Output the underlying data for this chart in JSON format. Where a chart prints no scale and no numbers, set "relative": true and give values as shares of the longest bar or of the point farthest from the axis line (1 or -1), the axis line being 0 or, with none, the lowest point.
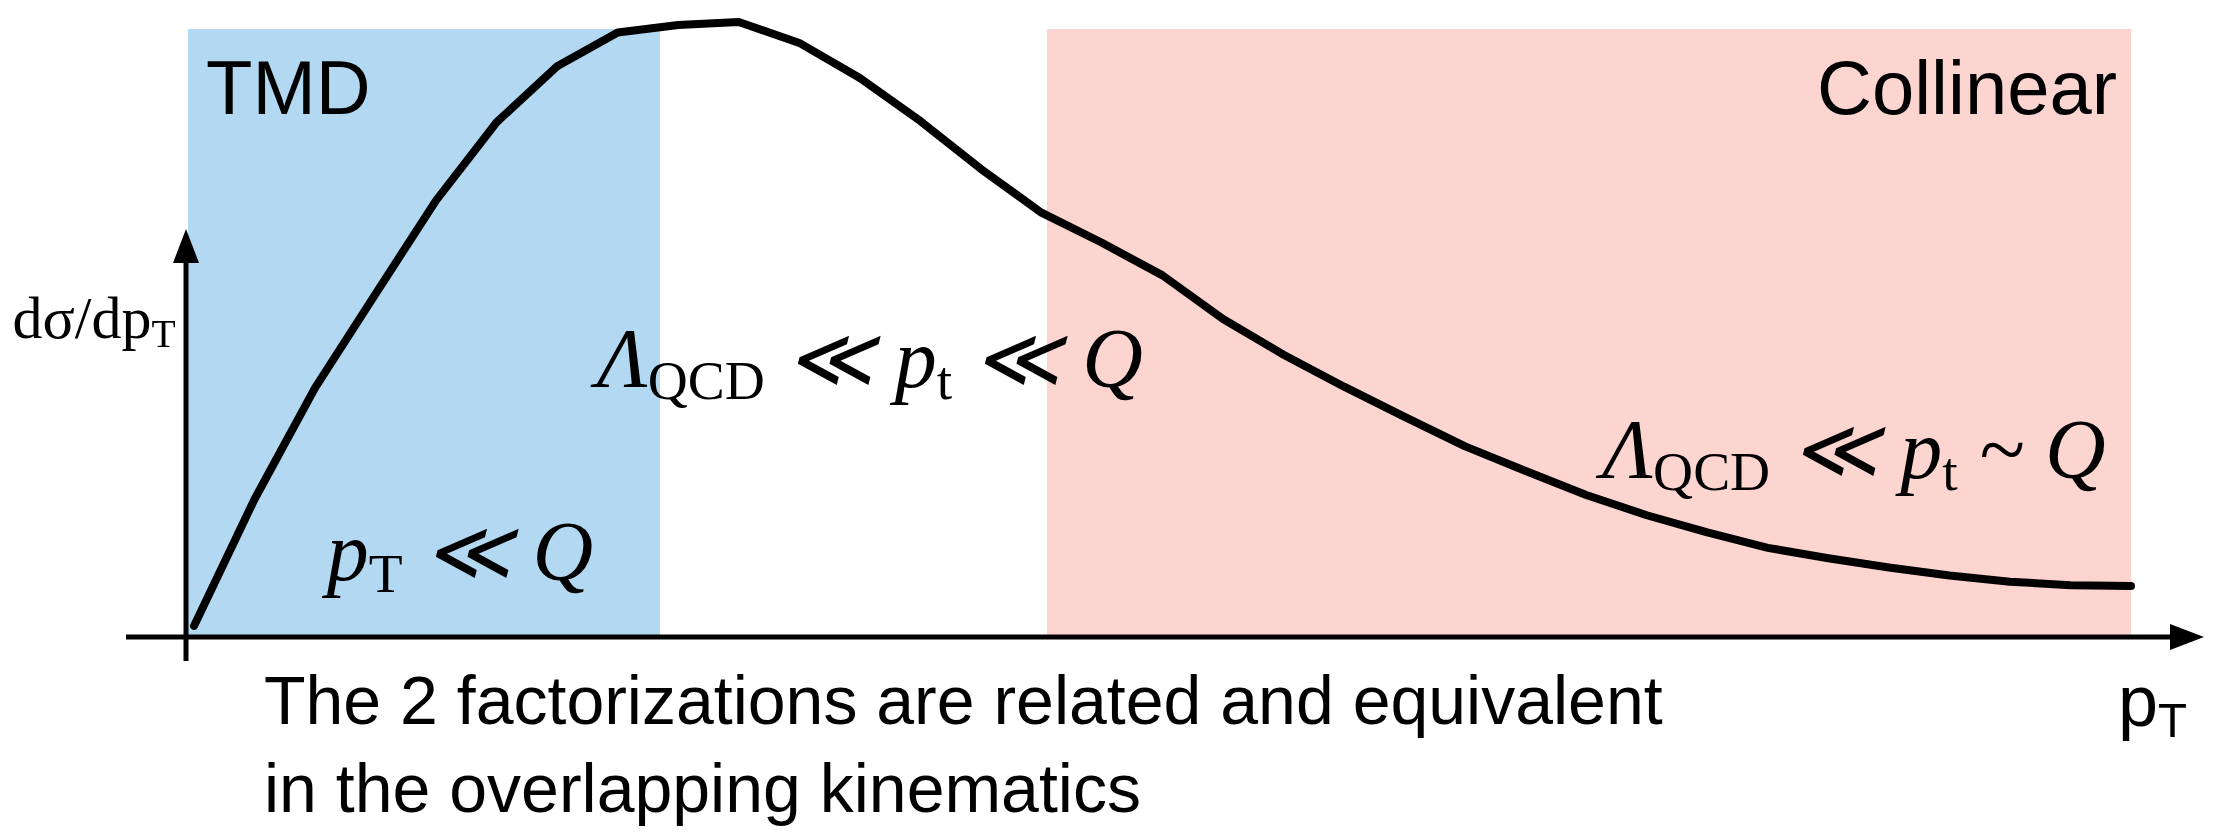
{
  "chart_data": {
    "type": "line",
    "relative": true,
    "xlabel": "p$_{T}$",
    "ylabel": "dσ/dp$_{T}$",
    "categories": [
      null,
      null,
      null,
      null,
      null,
      null,
      null,
      null,
      null,
      null,
      null,
      null,
      null,
      null,
      null,
      null,
      null,
      null,
      null,
      null,
      null,
      null,
      null,
      null,
      null,
      null,
      null,
      null,
      null,
      null,
      null,
      null,
      null
    ],
    "series": [
      {
        "color": "#000000",
        "values": [
          0.018,
          0.224,
          0.405,
          0.558,
          0.71,
          0.837,
          0.928,
          0.983,
          0.995,
          1,
          0.966,
          0.909,
          0.839,
          0.761,
          0.69,
          0.641,
          0.588,
          0.517,
          0.459,
          0.407,
          0.358,
          0.31,
          0.27,
          0.231,
          0.198,
          0.17,
          0.145,
          0.128,
          0.113,
          0.1,
          0.09,
          0.084,
          0.083
        ]
      }
    ],
    "annotations": [
      "TMD",
      "Collinear",
      "Λ$_{QCD}$ ≪ p$_{t}$ ≪ Q",
      "p$_{T}$ ≪ Q",
      "Λ$_{QCD}$ ≪ p$_{t}$ ~ Q",
      "The 2 factorizations are related and equivalent in the overlapping kinematics"
    ]
  }
}
